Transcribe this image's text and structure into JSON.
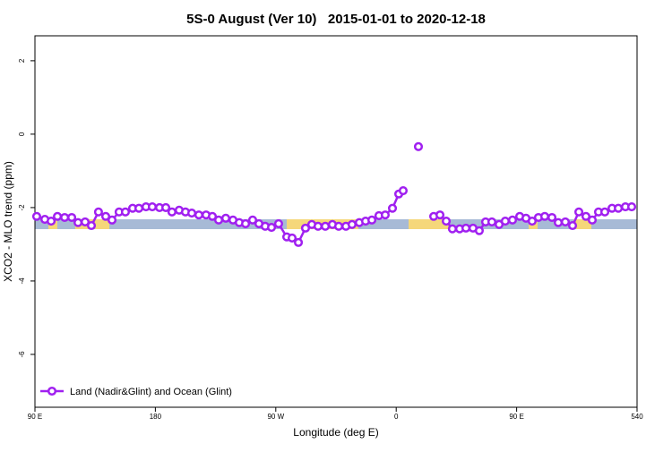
{
  "chart_data": {
    "type": "line",
    "title": "5S-0 August (Ver 10)   2015-01-01 to 2020-12-18",
    "x_label": "Longitude (deg E)",
    "y_label": "XCO2 - MLO trend (ppm)",
    "xlim": [
      90,
      540
    ],
    "ylim": [
      -7.44,
      2.68
    ],
    "xticks": [
      {
        "value": 90,
        "label": "90 E"
      },
      180,
      {
        "value": 270,
        "label": "90 W"
      },
      {
        "value": 360,
        "label": "0"
      },
      {
        "value": 450,
        "label": "90 E"
      },
      540
    ],
    "yticks": [
      2,
      0,
      -2,
      -4,
      -6
    ],
    "legend": "bottom left",
    "x": [
      91.3,
      97.4,
      102.1,
      106.8,
      112.2,
      117.5,
      122.2,
      127.5,
      132.2,
      137.5,
      142.9,
      147.6,
      152.9,
      157.6,
      163.0,
      167.7,
      173.0,
      177.7,
      183.1,
      187.8,
      192.4,
      197.8,
      202.5,
      207.2,
      212.5,
      217.9,
      222.6,
      227.3,
      232.6,
      238.0,
      242.7,
      247.4,
      252.7,
      257.4,
      262.1,
      266.8,
      272.1,
      278.2,
      282.2,
      286.9,
      292.2,
      296.9,
      301.6,
      307.0,
      312.3,
      317.0,
      322.4,
      327.0,
      332.4,
      337.1,
      341.8,
      347.1,
      351.8,
      357.2,
      361.9,
      365.2,
      371.0,
      376.6,
      382.0,
      388.0,
      392.7,
      397.4,
      402.0,
      407.4,
      412.1,
      417.4,
      422.1,
      426.8,
      431.5,
      436.9,
      441.5,
      446.9,
      452.3,
      457.0,
      461.6,
      466.3,
      471.0,
      476.4,
      481.1,
      486.4,
      491.8,
      496.5,
      501.8,
      506.5,
      511.2,
      515.9,
      521.3,
      526.0,
      531.3,
      536.0
    ],
    "series": [
      {
        "name": "Land (Nadir&Glint) and Ocean (Glint)",
        "color": "#a020f0",
        "values": [
          -2.24,
          -2.32,
          -2.37,
          -2.24,
          -2.27,
          -2.27,
          -2.41,
          -2.39,
          -2.49,
          -2.12,
          -2.24,
          -2.34,
          -2.12,
          -2.12,
          -2.02,
          -2.02,
          -1.98,
          -1.98,
          -2.0,
          -2.0,
          -2.12,
          -2.07,
          -2.12,
          -2.15,
          -2.2,
          -2.2,
          -2.24,
          -2.34,
          -2.29,
          -2.34,
          -2.41,
          -2.44,
          -2.34,
          -2.44,
          -2.51,
          -2.54,
          -2.44,
          -2.8,
          -2.83,
          -2.95,
          -2.56,
          -2.46,
          -2.51,
          -2.51,
          -2.46,
          -2.51,
          -2.51,
          -2.46,
          -2.41,
          -2.37,
          -2.34,
          -2.22,
          -2.2,
          -2.02,
          -1.63,
          -1.54,
          null,
          -0.34,
          null,
          -2.24,
          -2.2,
          -2.37,
          -2.58,
          -2.58,
          -2.56,
          -2.56,
          -2.63,
          -2.39,
          -2.39,
          -2.46,
          -2.37,
          -2.34,
          -2.24,
          -2.29,
          -2.37,
          -2.27,
          -2.24,
          -2.27,
          -2.41,
          -2.39,
          -2.49,
          -2.12,
          -2.24,
          -2.34,
          -2.12,
          -2.12,
          -2.02,
          -2.02,
          -1.98,
          -1.98
        ]
      }
    ]
  }
}
